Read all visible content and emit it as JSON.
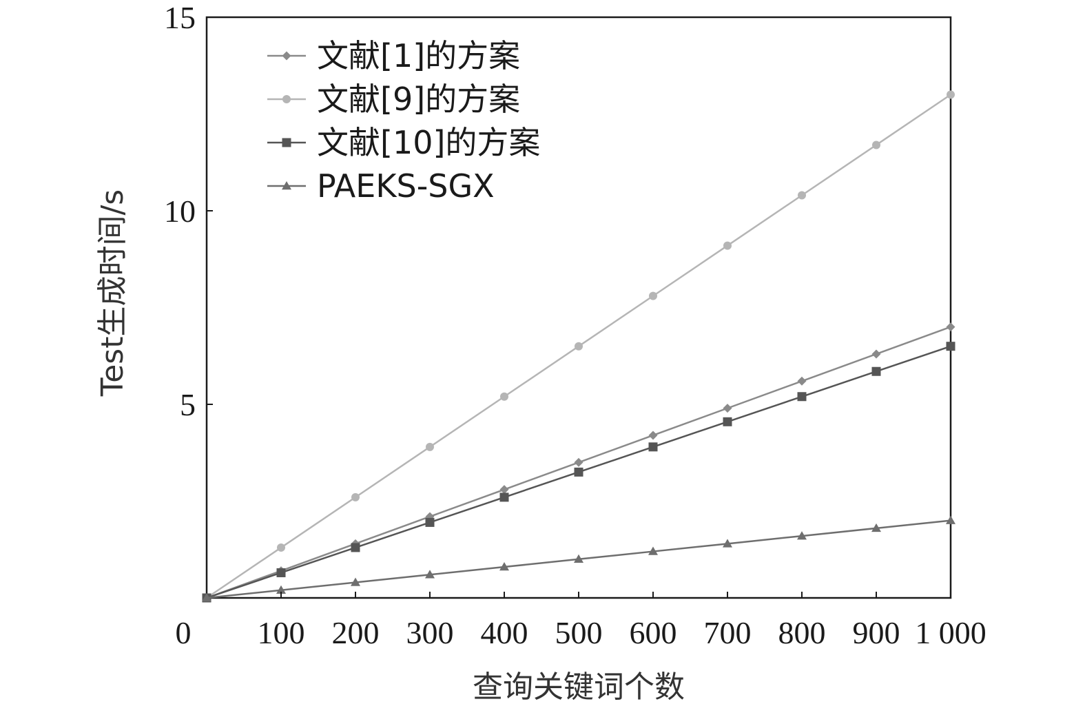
{
  "chart_data": {
    "type": "line",
    "xlabel": "查询关键词个数",
    "ylabel": "Test生成时间/s",
    "xlim": [
      0,
      1000
    ],
    "ylim": [
      0,
      15
    ],
    "x_origin_label": "0",
    "x_ticks": [
      {
        "value": 100,
        "label": "100"
      },
      {
        "value": 200,
        "label": "200"
      },
      {
        "value": 300,
        "label": "300"
      },
      {
        "value": 400,
        "label": "400"
      },
      {
        "value": 500,
        "label": "500"
      },
      {
        "value": 600,
        "label": "600"
      },
      {
        "value": 700,
        "label": "700"
      },
      {
        "value": 800,
        "label": "800"
      },
      {
        "value": 900,
        "label": "900"
      },
      {
        "value": 1000,
        "label": "1 000"
      }
    ],
    "y_ticks": [
      {
        "value": 5,
        "label": "5"
      },
      {
        "value": 10,
        "label": "10"
      },
      {
        "value": 15,
        "label": "15"
      }
    ],
    "grid": false,
    "legend_position": "top-left",
    "x": [
      0,
      100,
      200,
      300,
      400,
      500,
      600,
      700,
      800,
      900,
      1000
    ],
    "series": [
      {
        "name": "文献[1]的方案",
        "marker": "diamond",
        "color": "#8a8a8a",
        "values": [
          0,
          0.7,
          1.4,
          2.1,
          2.8,
          3.5,
          4.2,
          4.9,
          5.6,
          6.3,
          7.0
        ]
      },
      {
        "name": "文献[9]的方案",
        "marker": "circle",
        "color": "#b5b5b5",
        "values": [
          0,
          1.3,
          2.6,
          3.9,
          5.2,
          6.5,
          7.8,
          9.1,
          10.4,
          11.7,
          13.0
        ]
      },
      {
        "name": "文献[10]的方案",
        "marker": "square",
        "color": "#555555",
        "values": [
          0,
          0.65,
          1.3,
          1.95,
          2.6,
          3.25,
          3.9,
          4.55,
          5.2,
          5.85,
          6.5
        ]
      },
      {
        "name": "PAEKS-SGX",
        "marker": "triangle",
        "color": "#6e6e6e",
        "values": [
          0,
          0.2,
          0.4,
          0.6,
          0.8,
          1.0,
          1.2,
          1.4,
          1.6,
          1.8,
          2.0
        ]
      }
    ]
  }
}
